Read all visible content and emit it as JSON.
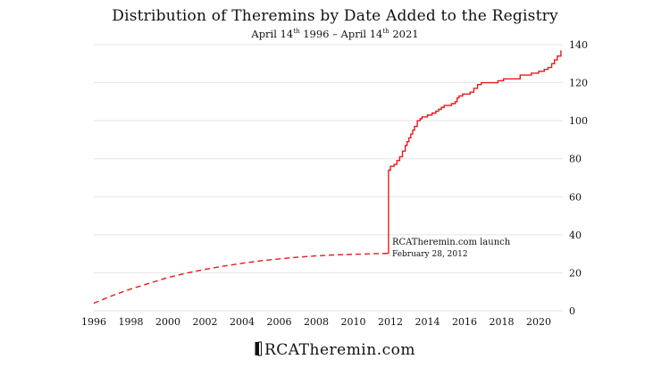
{
  "chart_data": {
    "type": "line",
    "title": "Distribution of Theremins by Date Added to the Registry",
    "subtitle": {
      "start_prefix": "April 14",
      "start_sup": "th",
      "start_year": "1996",
      "separator": "–",
      "end_prefix": "April 14",
      "end_sup": "th",
      "end_year": "2021"
    },
    "xlabel": "",
    "ylabel": "",
    "xlim": [
      1996,
      2021.3
    ],
    "ylim": [
      0,
      140
    ],
    "x_ticks": [
      "1996",
      "1998",
      "2000",
      "2002",
      "2004",
      "2006",
      "2008",
      "2010",
      "2012",
      "2014",
      "2016",
      "2018",
      "2020"
    ],
    "y_ticks": [
      "0",
      "20",
      "40",
      "60",
      "80",
      "100",
      "120",
      "140"
    ],
    "y_axis_position": "right",
    "grid": "horizontal",
    "colors": {
      "series": "#e8191b",
      "grid": "#e4e4e4",
      "text": "#111111"
    },
    "series": [
      {
        "style": "dashed",
        "x": [
          1996.0,
          1997.0,
          1998.0,
          1999.0,
          2000.0,
          2001.0,
          2002.0,
          2003.0,
          2004.0,
          2005.0,
          2006.0,
          2007.0,
          2008.0,
          2009.0,
          2010.0,
          2011.0,
          2011.9
        ],
        "y": [
          4,
          8,
          11.5,
          14.5,
          17.5,
          19.8,
          21.8,
          23.5,
          25,
          26.3,
          27.3,
          28.2,
          28.9,
          29.4,
          29.7,
          30,
          30.2
        ]
      },
      {
        "style": "solid-step",
        "x": [
          2011.9,
          2011.9,
          2012.0,
          2012.2,
          2012.35,
          2012.5,
          2012.65,
          2012.8,
          2012.9,
          2013.0,
          2013.1,
          2013.2,
          2013.3,
          2013.45,
          2013.6,
          2013.7,
          2013.85,
          2014.0,
          2014.25,
          2014.45,
          2014.6,
          2014.75,
          2014.9,
          2015.1,
          2015.3,
          2015.5,
          2015.6,
          2015.7,
          2015.9,
          2016.1,
          2016.3,
          2016.5,
          2016.7,
          2016.9,
          2017.2,
          2017.5,
          2017.8,
          2018.1,
          2018.3,
          2018.6,
          2019.0,
          2019.3,
          2019.6,
          2020.0,
          2020.3,
          2020.5,
          2020.7,
          2020.85,
          2021.0,
          2021.2
        ],
        "y": [
          30,
          74,
          76,
          77,
          79,
          81,
          84,
          87,
          89,
          91,
          93,
          95,
          97,
          100,
          101,
          102,
          102,
          103,
          104,
          105,
          106,
          107,
          108,
          108,
          109,
          110,
          112,
          113,
          114,
          114,
          115,
          117,
          119,
          120,
          120,
          120,
          121,
          122,
          122,
          122,
          124,
          124,
          125,
          126,
          127,
          128,
          130,
          132,
          134,
          137
        ]
      }
    ],
    "annotation": {
      "x": 2011.9,
      "y": 30,
      "line1": "RCATheremin.com launch",
      "line2": "February 28, 2012"
    }
  },
  "footer": {
    "brand": "RCATheremin.com"
  }
}
